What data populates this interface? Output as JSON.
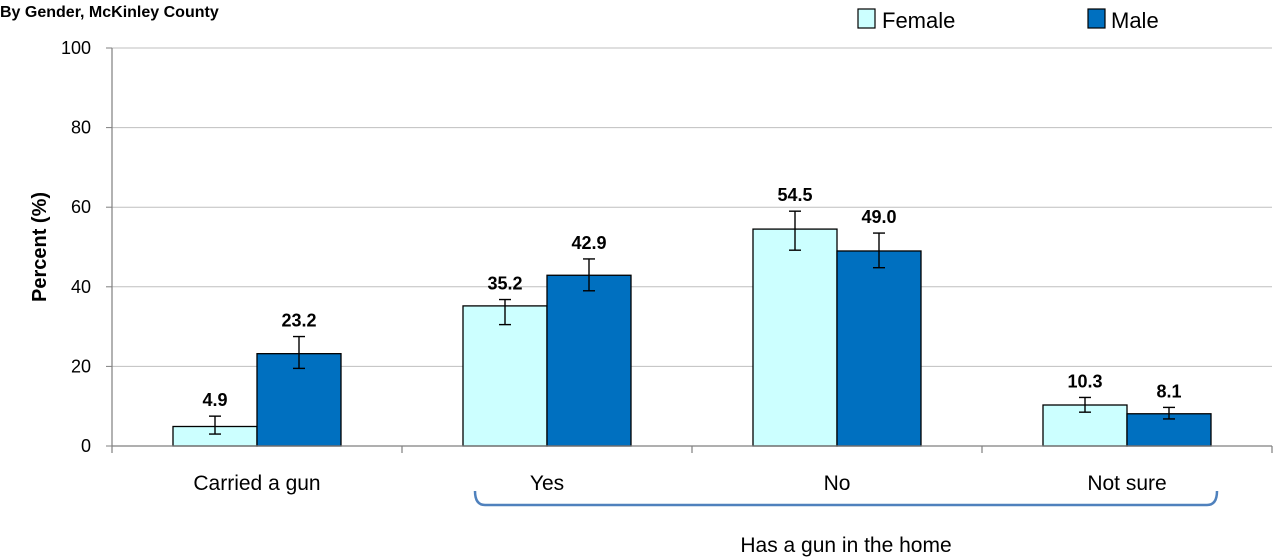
{
  "chart_data": {
    "type": "bar",
    "title": "By Gender, McKinley County",
    "ylabel": "Percent (%)",
    "ylim": [
      0,
      100
    ],
    "yticks": [
      0,
      20,
      40,
      60,
      80,
      100
    ],
    "categories": [
      "Carried a gun",
      "Yes",
      "No",
      "Not sure"
    ],
    "series": [
      {
        "name": "Female",
        "color": "#ccffff",
        "values": [
          4.9,
          35.2,
          54.5,
          10.3
        ],
        "labels": [
          "4.9",
          "35.2",
          "54.5",
          "10.3"
        ],
        "error_low": [
          3.0,
          30.5,
          49.2,
          8.5
        ],
        "error_high": [
          7.5,
          36.8,
          59.0,
          12.2
        ]
      },
      {
        "name": "Male",
        "color": "#0070c0",
        "values": [
          23.2,
          42.9,
          49.0,
          8.1
        ],
        "labels": [
          "23.2",
          "42.9",
          "49.0",
          "8.1"
        ],
        "error_low": [
          19.5,
          39.0,
          44.8,
          6.8
        ],
        "error_high": [
          27.5,
          47.0,
          53.5,
          9.7
        ]
      }
    ],
    "group_annotation": {
      "label": "Has a gun in the home",
      "spans_categories": [
        "Yes",
        "No",
        "Not sure"
      ]
    },
    "grid": true,
    "legend_position": "top-right",
    "error_bars": true
  }
}
